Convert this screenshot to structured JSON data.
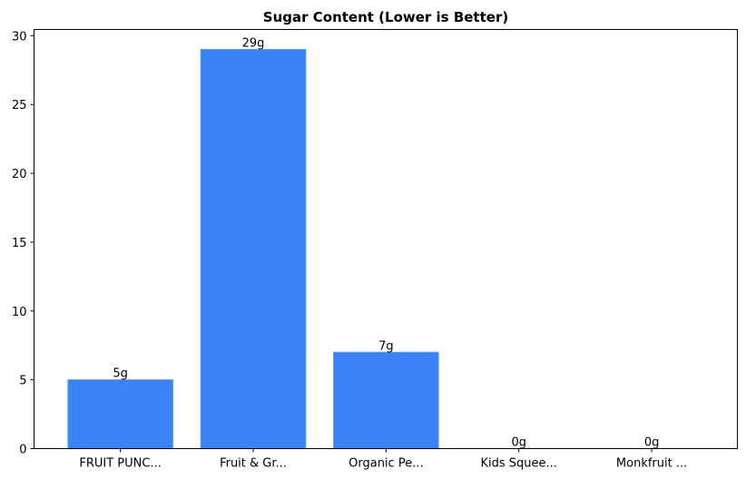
{
  "chart_data": {
    "type": "bar",
    "title": "Sugar Content (Lower is Better)",
    "xlabel": "",
    "ylabel": "",
    "categories": [
      "FRUIT PUNC...",
      "Fruit & Gr...",
      "Organic Pe...",
      "Kids Squee...",
      "Monkfruit ..."
    ],
    "values": [
      5,
      29,
      7,
      0,
      0
    ],
    "data_labels": [
      "5g",
      "29g",
      "7g",
      "0g",
      "0g"
    ],
    "ylim": [
      0,
      30.45
    ],
    "yticks": [
      0,
      5,
      10,
      15,
      20,
      25,
      30
    ],
    "grid": false,
    "bar_color": "#3b82f6",
    "bar_edge_color": "#5b9bf8"
  }
}
